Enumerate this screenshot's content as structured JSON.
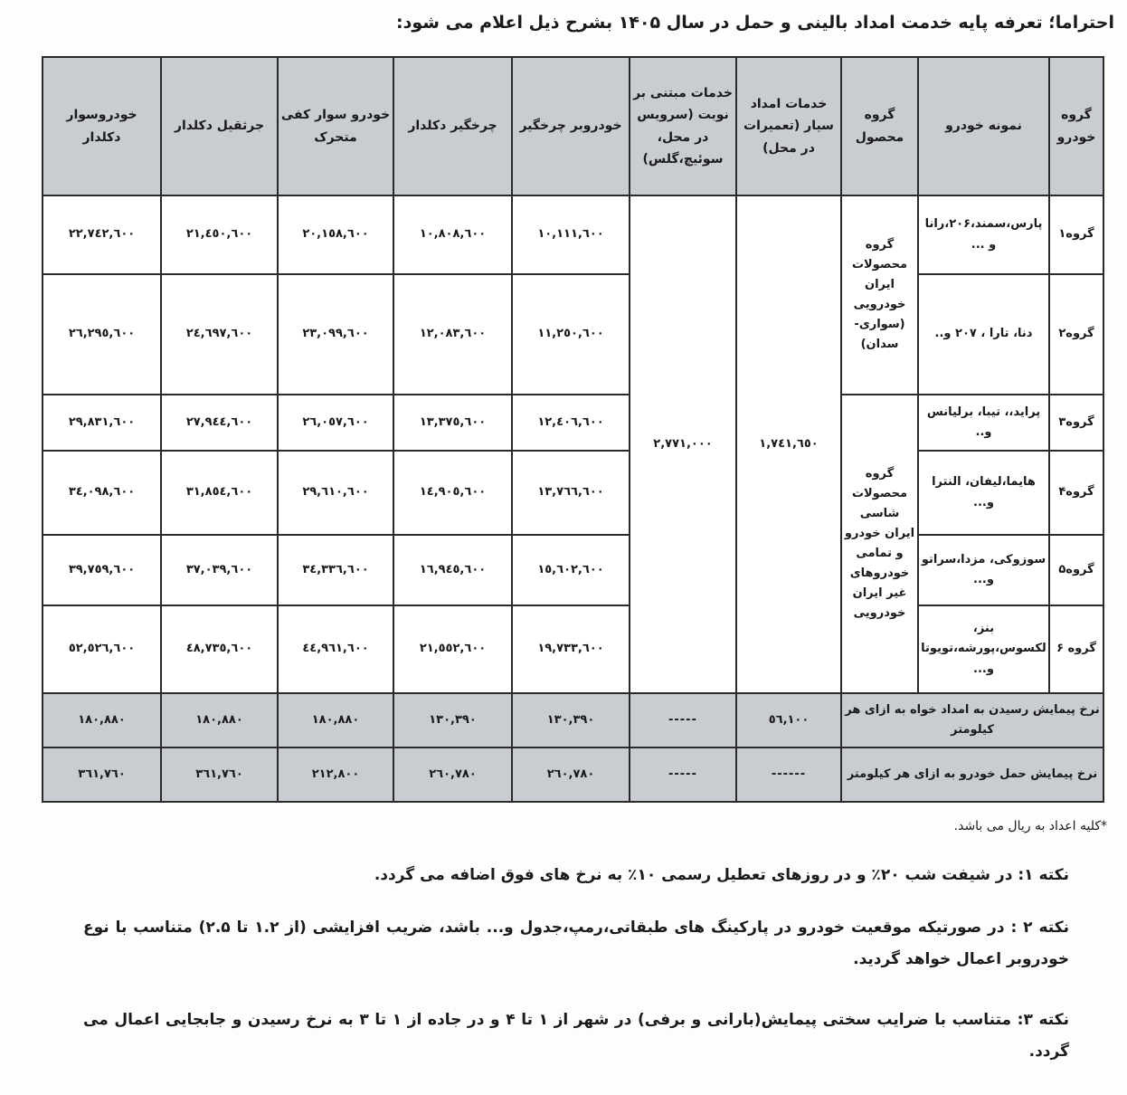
{
  "title": "احتراما؛ تعرفه پایه خدمت امداد بالینی و حمل در سال ۱۴۰۵ بشرح ذیل اعلام می شود:",
  "table": {
    "headers": [
      "گروه خودرو",
      "نمونه خودرو",
      "گروه محصول",
      "خدمات امداد سیار (تعمیرات در محل)",
      "خدمات مبتنی بر نوبت (سرویس در محل، سوئیچ،گلس)",
      "خودروبر چرخگیر",
      "چرخگیر دکلدار",
      "خودرو سوار کفی متحرک",
      "جرثقیل دکلدار",
      "خودروسوار دکلدار"
    ],
    "product_groups": [
      "گروه محصولات ایران خودرویی (سواری-سدان)",
      "گروه محصولات شاسی ایران خودرو و تمامی خودروهای غیر ایران خودرویی"
    ],
    "mobile_service_price": "۱,۷٤۱,٦٥۰",
    "appointment_service_price": "۲,۷۷۱,۰۰۰",
    "rows": [
      {
        "group": "گروه۱",
        "models": "پارس،سمند،۲۰۶،رانا و ...",
        "prices": [
          "۱۰,۱۱۱,٦۰۰",
          "۱۰,۸۰۸,٦۰۰",
          "۲۰,۱٥۸,٦۰۰",
          "۲۱,٤٥۰,٦۰۰",
          "۲۲,۷٤۲,٦۰۰"
        ]
      },
      {
        "group": "گروه۲",
        "models": "دنا، تارا ، ۲۰۷ و..",
        "prices": [
          "۱۱,۲٥۰,٦۰۰",
          "۱۲,۰۸۳,٦۰۰",
          "۲۳,۰۹۹,٦۰۰",
          "۲٤,٦۹۷,٦۰۰",
          "۲٦,۲۹٥,٦۰۰"
        ]
      },
      {
        "group": "گروه۳",
        "models": "پراید،، تیبا، برلیانس و..",
        "prices": [
          "۱۲,٤۰٦,٦۰۰",
          "۱۳,۳۷٥,٦۰۰",
          "۲٦,۰٥۷,٦۰۰",
          "۲۷,۹٤٤,٦۰۰",
          "۲۹,۸۳۱,٦۰۰"
        ]
      },
      {
        "group": "گروه۴",
        "models": "هایما،لیفان، النترا و...",
        "prices": [
          "۱۳,۷٦٦,٦۰۰",
          "۱٤,۹۰٥,٦۰۰",
          "۲۹,٦۱۰,٦۰۰",
          "۳۱,۸٥٤,٦۰۰",
          "۳٤,۰۹۸,٦۰۰"
        ]
      },
      {
        "group": "گروه۵",
        "models": "سوزوکی، مزدا،سراتو و...",
        "prices": [
          "۱٥,٦۰۲,٦۰۰",
          "۱٦,۹٤٥,٦۰۰",
          "۳٤,۳۳٦,٦۰۰",
          "۳۷,۰۳۹,٦۰۰",
          "۳۹,۷٥۹,٦۰۰"
        ]
      },
      {
        "group": "گروه ۶",
        "models": "بنز، لکسوس،پورشه،تویوتا و...",
        "prices": [
          "۱۹,۷۳۳,٦۰۰",
          "۲۱,٥٥۲,٦۰۰",
          "٤٤,۹٦۱,٦۰۰",
          "٤۸,۷۳٥,٦۰۰",
          "٥۲,٥۲٦,٦۰۰"
        ]
      }
    ],
    "km_rows": [
      {
        "label": "نرخ پیمایش رسیدن به امداد خواه به ازای هر کیلومتر",
        "mobile": "٥٦,۱۰۰",
        "appointment": "-----",
        "prices": [
          "۱۳۰,۳۹۰",
          "۱۳۰,۳۹۰",
          "۱۸۰,۸۸۰",
          "۱۸۰,۸۸۰",
          "۱۸۰,۸۸۰"
        ]
      },
      {
        "label": "نرخ پیمایش حمل خودرو به ازای هر کیلومتر",
        "mobile": "------",
        "appointment": "-----",
        "prices": [
          "۲٦۰,۷۸۰",
          "۲٦۰,۷۸۰",
          "۲۱۲,۸۰۰",
          "۳٦۱,۷٦۰",
          "۳٦۱,۷٦۰"
        ]
      }
    ]
  },
  "footnote": "*کلیه اعداد به ریال می باشد.",
  "notes": [
    "نکته ۱: در شیفت شب ۲۰٪ و در روزهای تعطیل رسمی ۱۰٪ به نرخ های فوق اضافه می گردد.",
    "نکته ۲ : در صورتیکه موقعیت خودرو در پارکینگ های طبقاتی،رمپ،جدول و... باشد، ضریب افزایشی (از ۱.۲ تا ۲.۵) متناسب با نوع خودروبر اعمال خواهد گردید.",
    "نکته ۳: متناسب با ضرایب سختی پیمایش(بارانی و برفی) در شهر از ۱ تا ۴ و در جاده از ۱ تا ۳ به نرخ رسیدن و جابجایی اعمال می گردد."
  ]
}
